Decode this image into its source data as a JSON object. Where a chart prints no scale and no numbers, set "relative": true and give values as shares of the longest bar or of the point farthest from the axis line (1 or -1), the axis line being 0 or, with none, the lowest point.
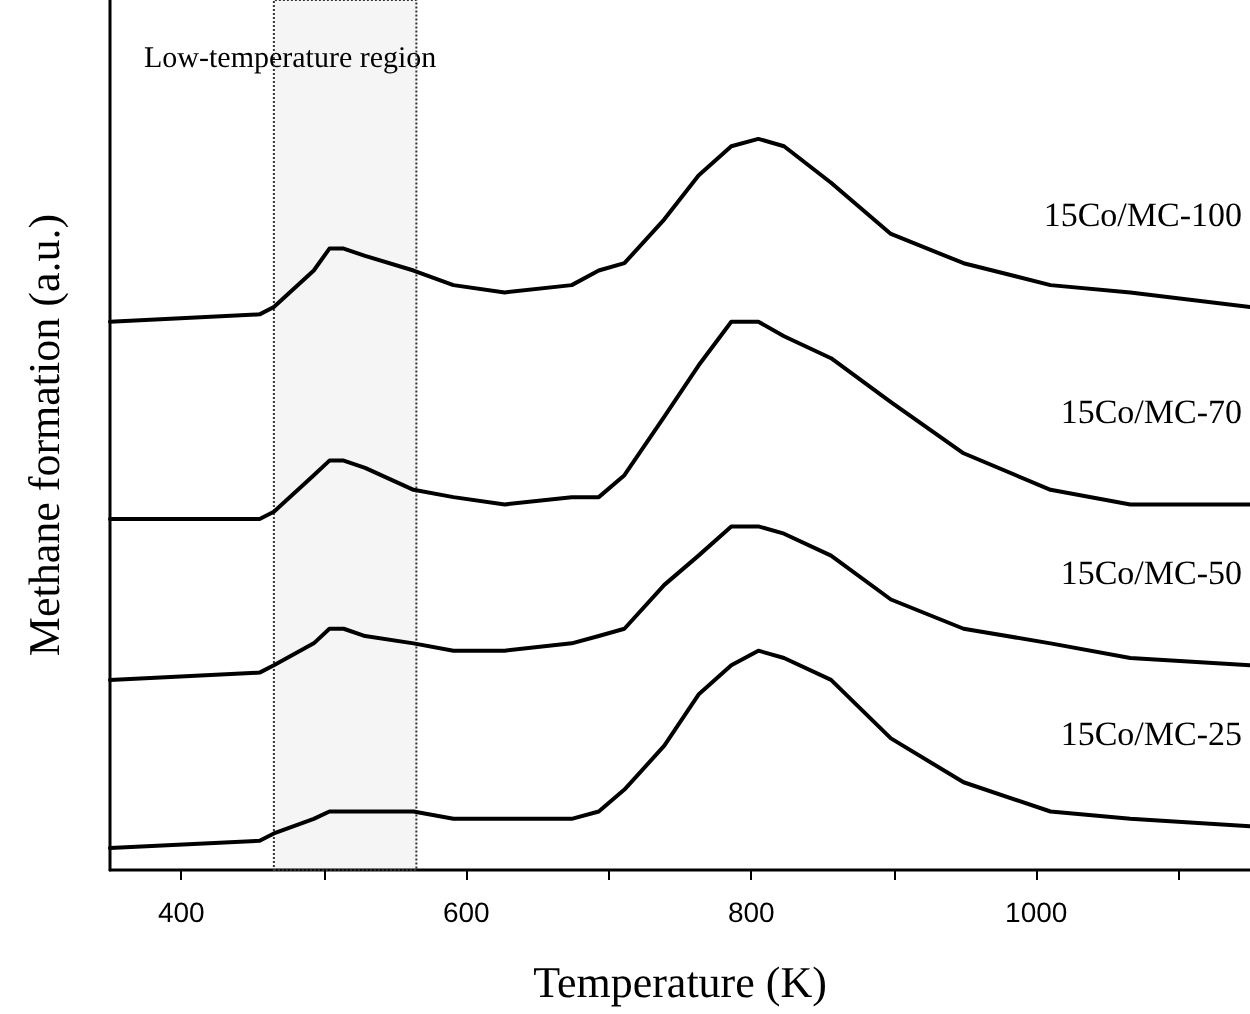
{
  "chart_data": {
    "type": "line",
    "xlabel": "Temperature (K)",
    "ylabel": "Methane formation (a.u.)",
    "relative": true,
    "annotations": [
      "Low-temperature region"
    ],
    "x": [
      350,
      455,
      465,
      493,
      504,
      514,
      529,
      563,
      591,
      627,
      674,
      693,
      711,
      739,
      763,
      786,
      805,
      823,
      856,
      898,
      949,
      1010,
      1066,
      1150
    ],
    "series": [
      {
        "name": "15Co/MC-100",
        "color": "#000000",
        "values": [
          0.75,
          0.76,
          0.77,
          0.82,
          0.85,
          0.85,
          0.84,
          0.82,
          0.8,
          0.79,
          0.8,
          0.82,
          0.83,
          0.89,
          0.95,
          0.99,
          1.0,
          0.99,
          0.94,
          0.87,
          0.83,
          0.8,
          0.79,
          0.77
        ]
      },
      {
        "name": "15Co/MC-70",
        "color": "#000000",
        "values": [
          0.48,
          0.48,
          0.49,
          0.54,
          0.56,
          0.56,
          0.55,
          0.52,
          0.51,
          0.5,
          0.51,
          0.51,
          0.54,
          0.62,
          0.69,
          0.75,
          0.75,
          0.73,
          0.7,
          0.64,
          0.57,
          0.52,
          0.5,
          0.5
        ]
      },
      {
        "name": "15Co/MC-50",
        "color": "#000000",
        "values": [
          0.26,
          0.27,
          0.28,
          0.31,
          0.33,
          0.33,
          0.32,
          0.31,
          0.3,
          0.3,
          0.31,
          0.32,
          0.33,
          0.39,
          0.43,
          0.47,
          0.47,
          0.46,
          0.43,
          0.37,
          0.33,
          0.31,
          0.29,
          0.28
        ]
      },
      {
        "name": "15Co/MC-25",
        "color": "#000000",
        "values": [
          0.03,
          0.04,
          0.05,
          0.07,
          0.08,
          0.08,
          0.08,
          0.08,
          0.07,
          0.07,
          0.07,
          0.08,
          0.11,
          0.17,
          0.24,
          0.28,
          0.3,
          0.29,
          0.26,
          0.18,
          0.12,
          0.08,
          0.07,
          0.06
        ]
      }
    ],
    "xlim": [
      350,
      1150
    ],
    "xticks": [
      400,
      {
        "value": 500,
        "label": null
      },
      600,
      {
        "value": 700,
        "label": null
      },
      800,
      {
        "value": 900,
        "label": null
      },
      1000,
      {
        "value": 1100,
        "label": null
      }
    ],
    "bands": [
      {
        "axis": "x",
        "from": 465,
        "to": 565
      }
    ],
    "marker": "none",
    "line_style": "solid"
  }
}
